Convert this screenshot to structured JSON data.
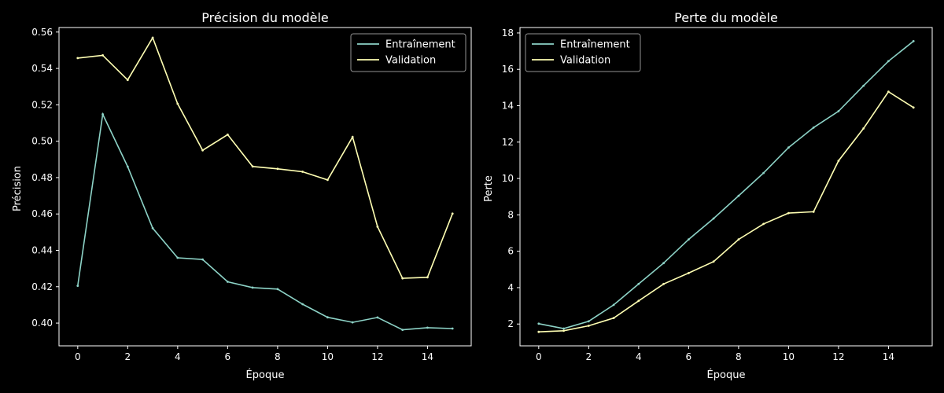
{
  "chart_data": [
    {
      "type": "line",
      "title": "Précision du modèle",
      "xlabel": "Époque",
      "ylabel": "Précision",
      "x": [
        0,
        1,
        2,
        3,
        4,
        5,
        6,
        7,
        8,
        9,
        10,
        11,
        12,
        13,
        14,
        15
      ],
      "xlim": [
        -0.75,
        15.75
      ],
      "ylim": [
        0.3875,
        0.5625
      ],
      "xticks": [
        0,
        2,
        4,
        6,
        8,
        10,
        12,
        14
      ],
      "yticks": [
        0.4,
        0.42,
        0.44,
        0.46,
        0.48,
        0.5,
        0.52,
        0.54,
        0.56
      ],
      "ytick_labels": [
        "0.40",
        "0.42",
        "0.44",
        "0.46",
        "0.48",
        "0.50",
        "0.52",
        "0.54",
        "0.56"
      ],
      "legend_position": "top-right",
      "series": [
        {
          "name": "Entraînement",
          "color": "#8dd3c7",
          "values": [
            0.4205,
            0.5148,
            0.486,
            0.4522,
            0.4359,
            0.435,
            0.4227,
            0.4195,
            0.4187,
            0.4104,
            0.4032,
            0.4004,
            0.4031,
            0.3963,
            0.3975,
            0.397
          ]
        },
        {
          "name": "Validation",
          "color": "#ffffb3",
          "values": [
            0.5457,
            0.5472,
            0.5337,
            0.5569,
            0.5206,
            0.495,
            0.5036,
            0.4861,
            0.4848,
            0.4832,
            0.4787,
            0.5023,
            0.453,
            0.4246,
            0.4252,
            0.4602
          ]
        }
      ]
    },
    {
      "type": "line",
      "title": "Perte du modèle",
      "xlabel": "Époque",
      "ylabel": "Perte",
      "x": [
        0,
        1,
        2,
        3,
        4,
        5,
        6,
        7,
        8,
        9,
        10,
        11,
        12,
        13,
        14,
        15
      ],
      "xlim": [
        -0.75,
        15.75
      ],
      "ylim": [
        0.8,
        18.3
      ],
      "xticks": [
        0,
        2,
        4,
        6,
        8,
        10,
        12,
        14
      ],
      "yticks": [
        2,
        4,
        6,
        8,
        10,
        12,
        14,
        16,
        18
      ],
      "ytick_labels": [
        "2",
        "4",
        "6",
        "8",
        "10",
        "12",
        "14",
        "16",
        "18"
      ],
      "legend_position": "top-left",
      "series": [
        {
          "name": "Entraînement",
          "color": "#8dd3c7",
          "values": [
            2.02,
            1.75,
            2.15,
            3.05,
            4.2,
            5.35,
            6.65,
            7.8,
            9.05,
            10.3,
            11.7,
            12.8,
            13.7,
            15.1,
            16.45,
            17.55
          ]
        },
        {
          "name": "Validation",
          "color": "#ffffb3",
          "values": [
            1.57,
            1.63,
            1.9,
            2.33,
            3.27,
            4.2,
            4.8,
            5.43,
            6.65,
            7.5,
            8.1,
            8.17,
            10.97,
            12.75,
            14.77,
            13.9
          ]
        }
      ]
    }
  ]
}
